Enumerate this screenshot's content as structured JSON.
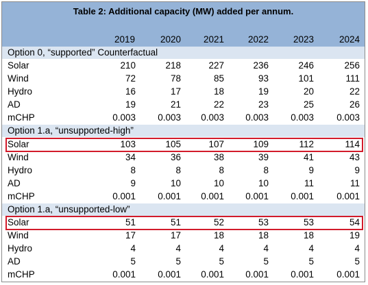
{
  "table": {
    "title": "Table 2: Additional capacity (MW) added per annum.",
    "years": [
      "2019",
      "2020",
      "2021",
      "2022",
      "2023",
      "2024"
    ],
    "sections": [
      {
        "header": "Option 0, “supported” Counterfactual",
        "rows": [
          {
            "label": "Solar",
            "values": [
              "210",
              "218",
              "227",
              "236",
              "246",
              "256"
            ]
          },
          {
            "label": "Wind",
            "values": [
              "72",
              "78",
              "85",
              "93",
              "101",
              "111"
            ]
          },
          {
            "label": "Hydro",
            "values": [
              "16",
              "17",
              "18",
              "19",
              "20",
              "22"
            ]
          },
          {
            "label": "AD",
            "values": [
              "19",
              "21",
              "22",
              "23",
              "25",
              "26"
            ]
          },
          {
            "label": "mCHP",
            "values": [
              "0.003",
              "0.003",
              "0.003",
              "0.003",
              "0.003",
              "0.003"
            ]
          }
        ]
      },
      {
        "header": "Option 1.a, “unsupported-high”",
        "rows": [
          {
            "label": "Solar",
            "values": [
              "103",
              "105",
              "107",
              "109",
              "112",
              "114"
            ]
          },
          {
            "label": "Wind",
            "values": [
              "34",
              "36",
              "38",
              "39",
              "41",
              "43"
            ]
          },
          {
            "label": "Hydro",
            "values": [
              "8",
              "8",
              "8",
              "8",
              "9",
              "9"
            ]
          },
          {
            "label": "AD",
            "values": [
              "9",
              "10",
              "10",
              "10",
              "11",
              "11"
            ]
          },
          {
            "label": "mCHP",
            "values": [
              "0.001",
              "0.001",
              "0.001",
              "0.001",
              "0.001",
              "0.001"
            ]
          }
        ]
      },
      {
        "header": "Option 1.a, “unsupported-low”",
        "rows": [
          {
            "label": "Solar",
            "values": [
              "51",
              "51",
              "52",
              "53",
              "53",
              "54"
            ]
          },
          {
            "label": "Wind",
            "values": [
              "17",
              "17",
              "18",
              "18",
              "18",
              "19"
            ]
          },
          {
            "label": "Hydro",
            "values": [
              "4",
              "4",
              "4",
              "4",
              "4",
              "4"
            ]
          },
          {
            "label": "AD",
            "values": [
              "5",
              "5",
              "5",
              "5",
              "5",
              "5"
            ]
          },
          {
            "label": "mCHP",
            "values": [
              "0.001",
              "0.001",
              "0.001",
              "0.001",
              "0.001",
              "0.001"
            ]
          }
        ]
      }
    ],
    "highlight_color": "#d21a2a",
    "header_color": "#95b3d7",
    "section_color": "#dbe5f1"
  }
}
